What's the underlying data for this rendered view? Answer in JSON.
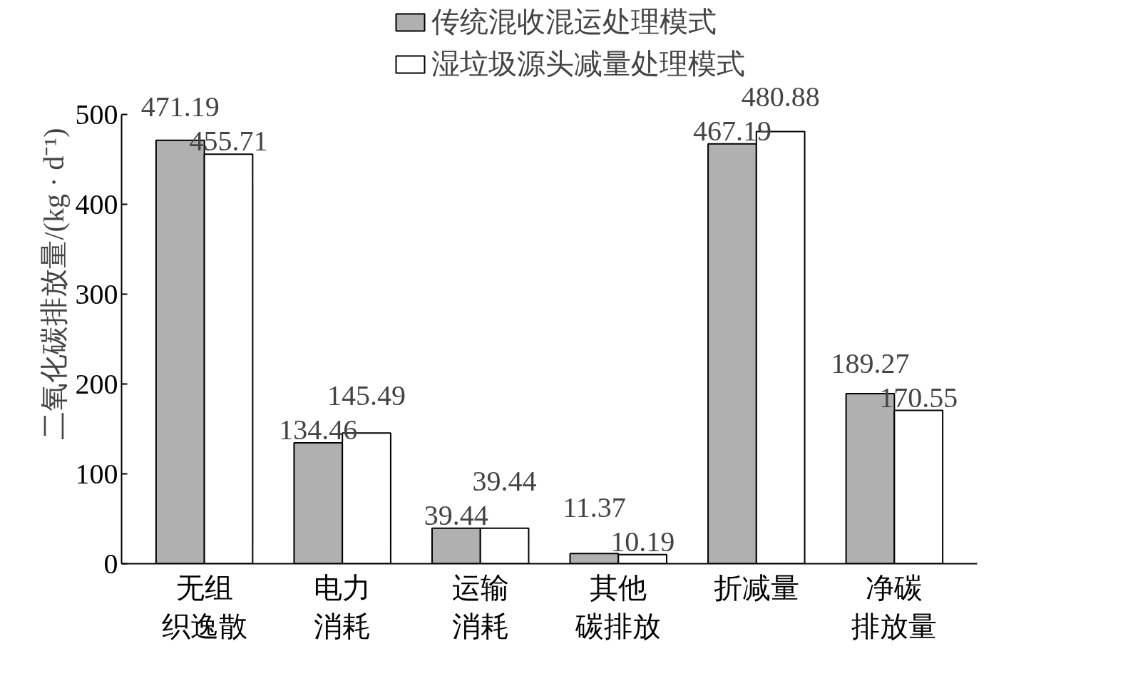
{
  "chart_data": {
    "type": "bar",
    "ylabel": "二氧化碳排放量/(kg · d⁻¹)",
    "categories": [
      "无组织逸散",
      "电力消耗",
      "运输消耗",
      "其他碳排放",
      "折减量",
      "净碳排放量"
    ],
    "series": [
      {
        "name": "传统混收混运处理模式",
        "color": "#b0b0b0",
        "values": [
          471.19,
          134.46,
          39.44,
          11.37,
          467.19,
          189.27
        ]
      },
      {
        "name": "湿垃圾源头减量处理模式",
        "color": "#ffffff",
        "values": [
          455.71,
          145.49,
          39.44,
          10.19,
          480.88,
          170.55
        ]
      }
    ],
    "ylim": [
      0,
      500
    ],
    "yticks": [
      0,
      100,
      200,
      300,
      400,
      500
    ],
    "grid": false,
    "legend": "top",
    "data_labels": true
  }
}
